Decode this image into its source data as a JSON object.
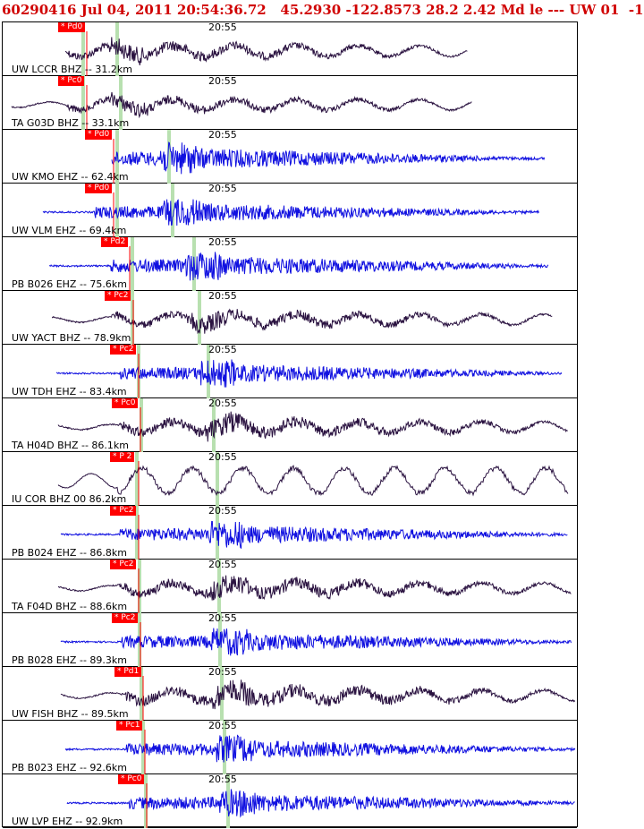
{
  "header": {
    "title": "60290416 Jul 04, 2011 20:54:36.72   45.2930 -122.8573 28.2 2.42 Md le --- UW 01  -1"
  },
  "colors": {
    "title": "#d00000",
    "trace_bhz": "#2a1240",
    "trace_ehz": "#1010e0",
    "pick": "#ff0000",
    "theoretical": "#b8e0b0",
    "border": "#000000"
  },
  "time_marker": "20:55",
  "traces": [
    {
      "label": "UW LCCR BHZ -- 31.2km",
      "pick": "* Pd0",
      "type": "BHZ",
      "amp": 12,
      "duration": 0.78
    },
    {
      "label": "TA G03D BHZ -- 33.1km",
      "pick": "* Pc0",
      "type": "BHZ",
      "amp": 10,
      "duration": 0.78
    },
    {
      "label": "UW KMO EHZ -- 62.4km",
      "pick": "* Pd0",
      "type": "EHZ",
      "amp": 16,
      "duration": 0.92
    },
    {
      "label": "UW VLM EHZ -- 69.4km",
      "pick": "* Pd0",
      "type": "EHZ",
      "amp": 14,
      "duration": 0.95
    },
    {
      "label": "PB B026 EHZ -- 75.6km",
      "pick": "* Pd2",
      "type": "EHZ",
      "amp": 15,
      "duration": 0.95
    },
    {
      "label": "UW YACT BHZ -- 78.9km",
      "pick": "* Pc2",
      "type": "BHZ",
      "amp": 12,
      "duration": 0.96
    },
    {
      "label": "UW TDH EHZ -- 83.4km",
      "pick": "* Pc2",
      "type": "EHZ",
      "amp": 14,
      "duration": 0.96
    },
    {
      "label": "TA H04D BHZ -- 86.1km",
      "pick": "* Pc0",
      "type": "BHZ",
      "amp": 14,
      "duration": 0.99
    },
    {
      "label": "IU COR BHZ 00 86.2km",
      "pick": "* P 2",
      "type": "LOW",
      "amp": 16,
      "duration": 0.99
    },
    {
      "label": "PB B024 EHZ -- 86.8km",
      "pick": "* Pc2",
      "type": "EHZ",
      "amp": 14,
      "duration": 0.99
    },
    {
      "label": "TA F04D BHZ -- 88.6km",
      "pick": "* Pc2",
      "type": "BHZ",
      "amp": 14,
      "duration": 0.99
    },
    {
      "label": "PB B028 EHZ -- 89.3km",
      "pick": "* Pc2",
      "type": "EHZ",
      "amp": 14,
      "duration": 0.99
    },
    {
      "label": "UW FISH BHZ -- 89.5km",
      "pick": "* Pd1",
      "type": "BHZ",
      "amp": 16,
      "duration": 0.99
    },
    {
      "label": "PB B023 EHZ -- 92.6km",
      "pick": "* Pc1",
      "type": "EHZ",
      "amp": 14,
      "duration": 0.99
    },
    {
      "label": "UW LVP EHZ -- 92.9km",
      "pick": "* Pc0",
      "type": "EHZ",
      "amp": 14,
      "duration": 0.99
    }
  ]
}
